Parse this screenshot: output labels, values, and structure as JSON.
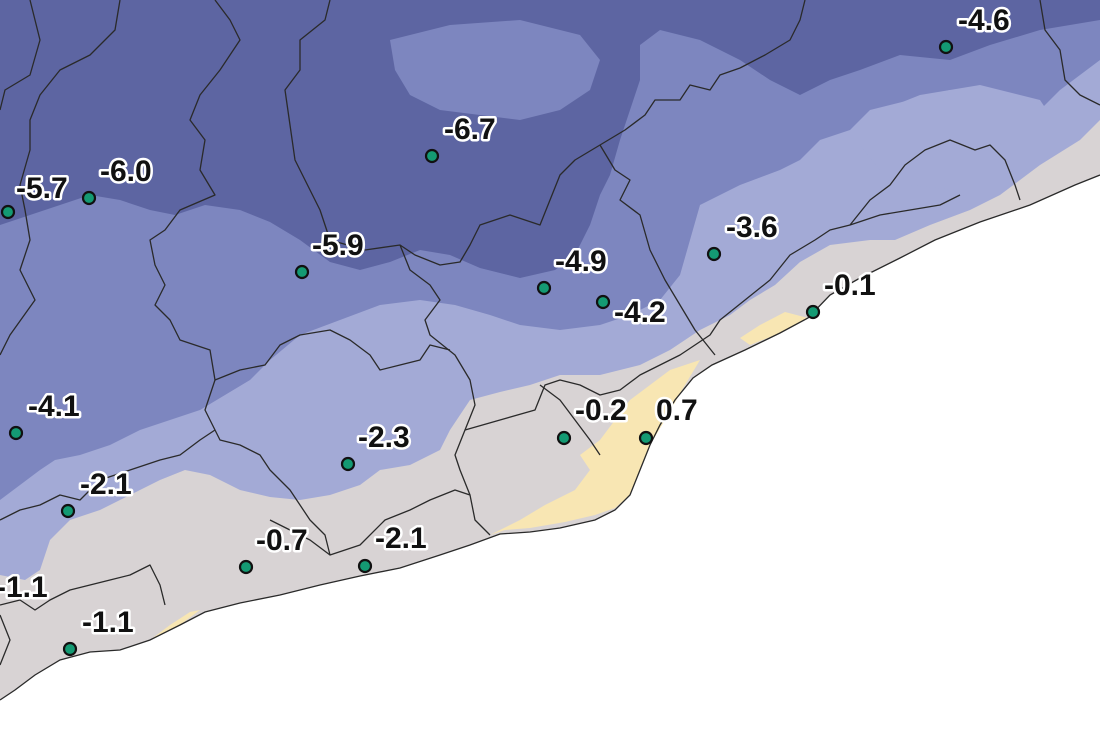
{
  "map": {
    "colors": {
      "sea": "#ffffff",
      "level_1": "#5d65a2",
      "level_2": "#7d86bf",
      "level_3": "#a3aad6",
      "level_4": "#d8d3d4",
      "level_5": "#f8e6b3",
      "station": "#149a73",
      "borders": "#2a2a2a"
    },
    "stations": [
      {
        "value": "-4.6"
      },
      {
        "value": "-6.7"
      },
      {
        "value": "-5.7"
      },
      {
        "value": "-6.0"
      },
      {
        "value": "-5.9"
      },
      {
        "value": "-3.6"
      },
      {
        "value": "-0.1"
      },
      {
        "value": "-4.9"
      },
      {
        "value": "-4.2"
      },
      {
        "value": "-4.1"
      },
      {
        "value": "-2.3"
      },
      {
        "value": "-0.2"
      },
      {
        "value": "0.7"
      },
      {
        "value": "-2.1"
      },
      {
        "value": "-1.1"
      },
      {
        "value": "-0.7"
      },
      {
        "value": "-2.1"
      },
      {
        "value": "-1.1"
      }
    ]
  }
}
